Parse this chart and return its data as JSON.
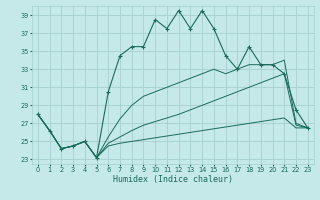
{
  "bg_color": "#c5e8e8",
  "grid_color": "#a8d0d0",
  "line_color": "#1a6b5a",
  "xlabel": "Humidex (Indice chaleur)",
  "xlim": [
    -0.5,
    23.5
  ],
  "ylim": [
    22.5,
    40.0
  ],
  "yticks": [
    23,
    25,
    27,
    29,
    31,
    33,
    35,
    37,
    39
  ],
  "xticks": [
    0,
    1,
    2,
    3,
    4,
    5,
    6,
    7,
    8,
    9,
    10,
    11,
    12,
    13,
    14,
    15,
    16,
    17,
    18,
    19,
    20,
    21,
    22,
    23
  ],
  "series1_x": [
    0,
    1,
    2,
    3,
    4,
    5,
    6,
    7,
    8,
    9,
    10,
    11,
    12,
    13,
    14,
    15,
    16,
    17,
    18,
    19,
    20,
    21,
    22,
    23
  ],
  "series1_y": [
    28.0,
    26.2,
    24.2,
    24.5,
    25.0,
    23.2,
    30.5,
    34.5,
    35.5,
    35.5,
    38.5,
    37.5,
    39.5,
    37.5,
    39.5,
    37.5,
    34.5,
    33.0,
    35.5,
    33.5,
    33.5,
    32.5,
    28.5,
    26.5
  ],
  "series2_x": [
    0,
    1,
    2,
    3,
    4,
    5,
    6,
    7,
    8,
    9,
    10,
    11,
    12,
    13,
    14,
    15,
    16,
    17,
    18,
    19,
    20,
    21,
    22,
    23
  ],
  "series2_y": [
    28.0,
    26.2,
    24.2,
    24.5,
    25.0,
    23.2,
    25.5,
    27.5,
    29.0,
    30.0,
    30.5,
    31.0,
    31.5,
    32.0,
    32.5,
    33.0,
    32.5,
    33.0,
    33.5,
    33.5,
    33.5,
    34.0,
    27.0,
    26.5
  ],
  "series3_x": [
    0,
    1,
    2,
    3,
    4,
    5,
    6,
    7,
    8,
    9,
    10,
    11,
    12,
    13,
    14,
    15,
    16,
    17,
    18,
    19,
    20,
    21,
    22,
    23
  ],
  "series3_y": [
    28.0,
    26.2,
    24.2,
    24.5,
    25.0,
    23.2,
    24.8,
    25.5,
    26.2,
    26.8,
    27.2,
    27.6,
    28.0,
    28.5,
    29.0,
    29.5,
    30.0,
    30.5,
    31.0,
    31.5,
    32.0,
    32.5,
    26.8,
    26.5
  ],
  "series4_x": [
    0,
    1,
    2,
    3,
    4,
    5,
    6,
    7,
    8,
    9,
    10,
    11,
    12,
    13,
    14,
    15,
    16,
    17,
    18,
    19,
    20,
    21,
    22,
    23
  ],
  "series4_y": [
    28.0,
    26.2,
    24.2,
    24.5,
    25.0,
    23.2,
    24.5,
    24.8,
    25.0,
    25.2,
    25.4,
    25.6,
    25.8,
    26.0,
    26.2,
    26.4,
    26.6,
    26.8,
    27.0,
    27.2,
    27.4,
    27.6,
    26.5,
    26.5
  ]
}
